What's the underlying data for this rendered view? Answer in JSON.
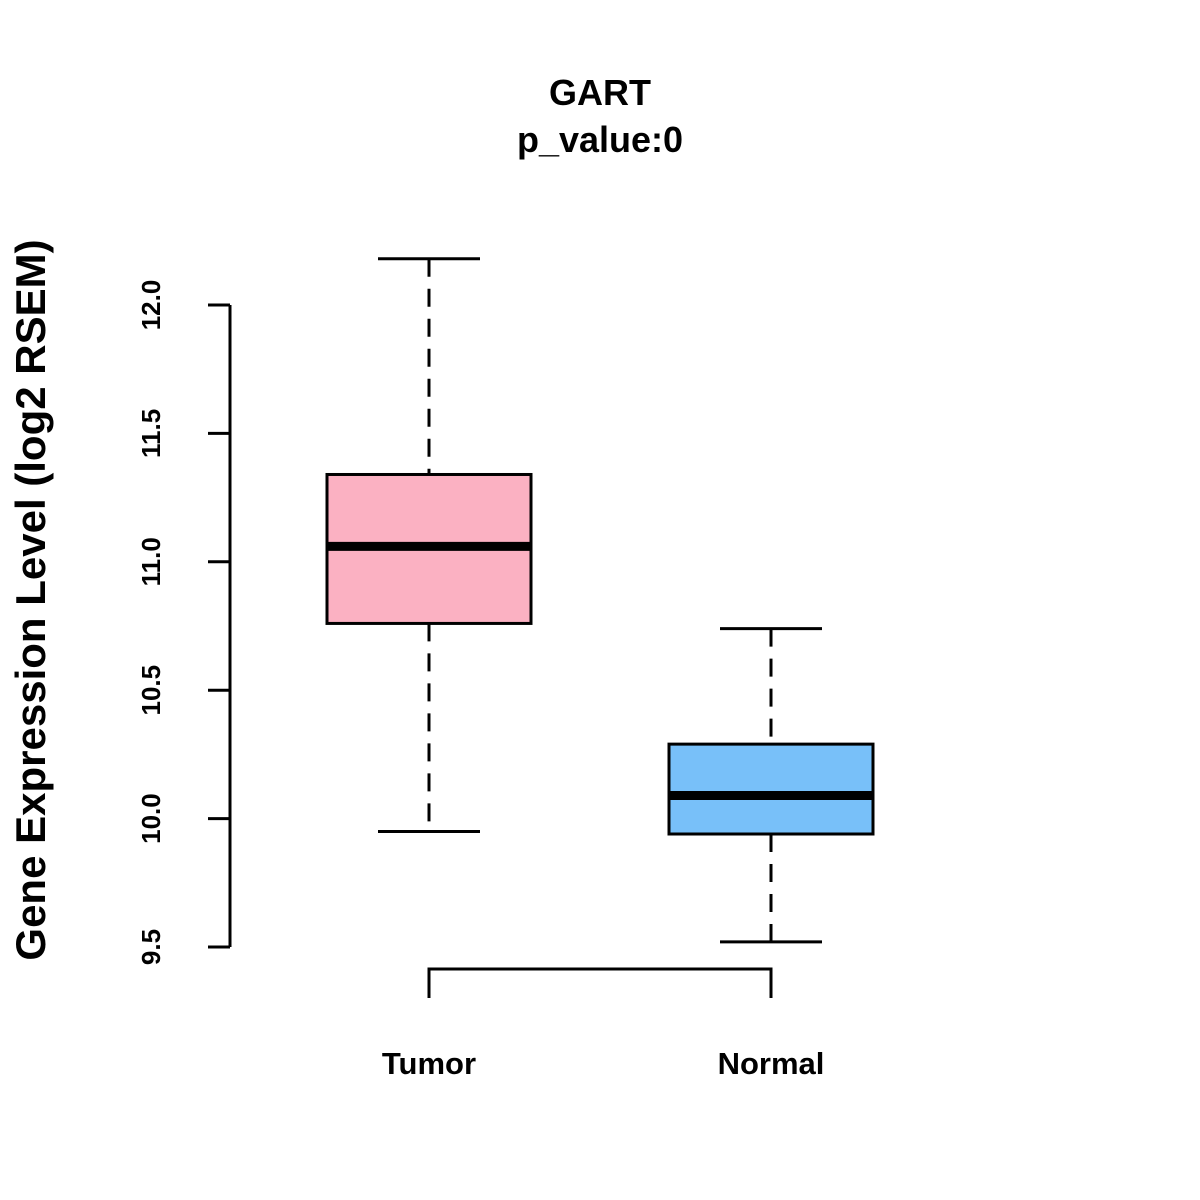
{
  "chart_data": {
    "type": "boxplot",
    "title": "GART",
    "subtitle": "p_value:0",
    "ylabel": "Gene Expression Level (log2 RSEM)",
    "xlabel": "",
    "ylim": [
      9.5,
      12.0
    ],
    "yticks": [
      9.5,
      10.0,
      10.5,
      11.0,
      11.5,
      12.0
    ],
    "ytick_labels": [
      "9.5",
      "10.0",
      "10.5",
      "11.0",
      "11.5",
      "12.0"
    ],
    "categories": [
      "Tumor",
      "Normal"
    ],
    "boxes": [
      {
        "name": "Tumor",
        "whisker_low": 9.95,
        "q1": 10.76,
        "median": 11.06,
        "q3": 11.34,
        "whisker_high": 12.18,
        "color": "#FBB1C2"
      },
      {
        "name": "Normal",
        "whisker_low": 9.52,
        "q1": 9.94,
        "median": 10.09,
        "q3": 10.29,
        "whisker_high": 10.74,
        "color": "#78C0F9"
      }
    ],
    "significance_bracket": {
      "from": "Tumor",
      "to": "Normal",
      "label": ""
    },
    "grid": false
  }
}
